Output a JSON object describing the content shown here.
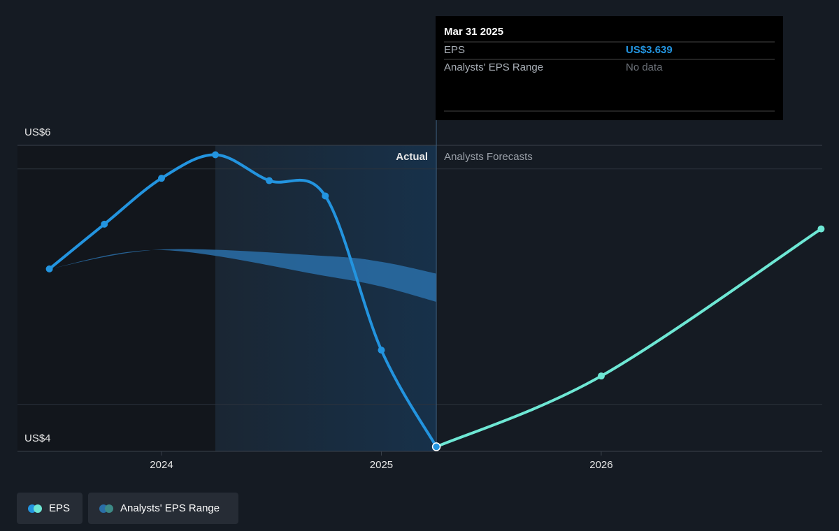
{
  "chart_data": {
    "type": "line",
    "xlim": [
      2023.345,
      2027.005
    ],
    "ylim": [
      3.6,
      6.2
    ],
    "xticks": [
      {
        "value": 2024,
        "label": "2024"
      },
      {
        "value": 2025,
        "label": "2025"
      },
      {
        "value": 2026,
        "label": "2026"
      }
    ],
    "yticks": [
      {
        "value": 4,
        "label": "US$4"
      },
      {
        "value": 6,
        "label": "US$6"
      }
    ],
    "grid": true,
    "section_labels": [
      "Actual",
      "Analysts Forecasts"
    ],
    "series": [
      {
        "name": "EPS",
        "color": "#2394df",
        "x": [
          2023.49,
          2023.74,
          2024.0,
          2024.245,
          2024.49,
          2024.745,
          2025.0,
          2025.25
        ],
        "values": [
          5.15,
          5.53,
          5.92,
          6.12,
          5.9,
          5.77,
          4.46,
          3.639
        ],
        "forecast": {
          "color": "#6ee7d4",
          "x": [
            2025.25,
            2026.0,
            2027.0
          ],
          "values": [
            3.639,
            4.24,
            5.49
          ]
        }
      },
      {
        "name": "Analysts' EPS Range",
        "color": "#2a6fa8",
        "x": [
          2023.49,
          2024.0,
          2024.745,
          2025.0,
          2025.25
        ],
        "low": [
          5.15,
          5.31,
          5.09,
          5.0,
          4.87
        ],
        "high": [
          5.15,
          5.315,
          5.26,
          5.21,
          5.11
        ]
      }
    ],
    "tooltip": {
      "title": "Mar 31 2025",
      "rows": [
        [
          "EPS",
          "US$3.639"
        ],
        [
          "Analysts' EPS Range",
          "No data"
        ]
      ]
    }
  }
}
